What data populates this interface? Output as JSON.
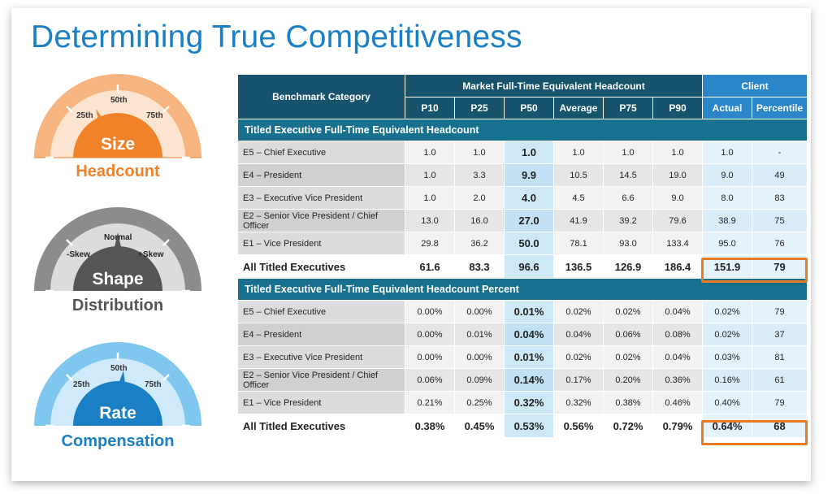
{
  "title": "Determining True Competitiveness",
  "gauges": [
    {
      "label": "Size",
      "caption": "Headcount",
      "ticks": [
        "25th",
        "50th",
        "75th"
      ],
      "color": "#f0822a"
    },
    {
      "label": "Shape",
      "caption": "Distribution",
      "ticks": [
        "-Skew",
        "Normal",
        "+Skew"
      ],
      "color": "#5a5a5a"
    },
    {
      "label": "Rate",
      "caption": "Compensation",
      "ticks": [
        "25th",
        "50th",
        "75th"
      ],
      "color": "#1a7fc4"
    }
  ],
  "table": {
    "header": {
      "category": "Benchmark Category",
      "market": "Market Full-Time Equivalent Headcount",
      "client": "Client",
      "market_cols": [
        "P10",
        "P25",
        "P50",
        "Average",
        "P75",
        "P90"
      ],
      "client_cols": [
        "Actual",
        "Percentile"
      ]
    },
    "sections": [
      {
        "title": "Titled Executive Full-Time Equivalent Headcount",
        "rows": [
          {
            "cat": "E5 – Chief Executive",
            "vals": [
              "1.0",
              "1.0",
              "1.0",
              "1.0",
              "1.0",
              "1.0",
              "1.0",
              "-"
            ]
          },
          {
            "cat": "E4 – President",
            "vals": [
              "1.0",
              "3.3",
              "9.9",
              "10.5",
              "14.5",
              "19.0",
              "9.0",
              "49"
            ]
          },
          {
            "cat": "E3 – Executive Vice President",
            "vals": [
              "1.0",
              "2.0",
              "4.0",
              "4.5",
              "6.6",
              "9.0",
              "8.0",
              "83"
            ]
          },
          {
            "cat": "E2 – Senior Vice President / Chief Officer",
            "vals": [
              "13.0",
              "16.0",
              "27.0",
              "41.9",
              "39.2",
              "79.6",
              "38.9",
              "75"
            ]
          },
          {
            "cat": "E1 – Vice President",
            "vals": [
              "29.8",
              "36.2",
              "50.0",
              "78.1",
              "93.0",
              "133.4",
              "95.0",
              "76"
            ]
          }
        ],
        "total": {
          "cat": "All Titled Executives",
          "vals": [
            "61.6",
            "83.3",
            "96.6",
            "136.5",
            "126.9",
            "186.4",
            "151.9",
            "79"
          ]
        }
      },
      {
        "title": "Titled Executive Full-Time Equivalent Headcount Percent",
        "rows": [
          {
            "cat": "E5 – Chief Executive",
            "vals": [
              "0.00%",
              "0.00%",
              "0.01%",
              "0.02%",
              "0.02%",
              "0.04%",
              "0.02%",
              "79"
            ]
          },
          {
            "cat": "E4 – President",
            "vals": [
              "0.00%",
              "0.01%",
              "0.04%",
              "0.04%",
              "0.06%",
              "0.08%",
              "0.02%",
              "37"
            ]
          },
          {
            "cat": "E3 – Executive Vice President",
            "vals": [
              "0.00%",
              "0.00%",
              "0.01%",
              "0.02%",
              "0.02%",
              "0.04%",
              "0.03%",
              "81"
            ]
          },
          {
            "cat": "E2 – Senior Vice President / Chief Officer",
            "vals": [
              "0.06%",
              "0.09%",
              "0.14%",
              "0.17%",
              "0.20%",
              "0.36%",
              "0.16%",
              "61"
            ]
          },
          {
            "cat": "E1 – Vice President",
            "vals": [
              "0.21%",
              "0.25%",
              "0.32%",
              "0.32%",
              "0.38%",
              "0.46%",
              "0.40%",
              "79"
            ]
          }
        ],
        "total": {
          "cat": "All Titled Executives",
          "vals": [
            "0.38%",
            "0.45%",
            "0.53%",
            "0.56%",
            "0.72%",
            "0.79%",
            "0.64%",
            "68"
          ]
        }
      }
    ],
    "highlight_color": "#e87a23"
  }
}
